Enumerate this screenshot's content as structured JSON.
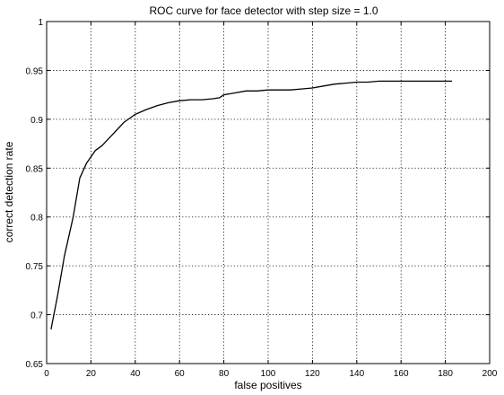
{
  "chart_data": {
    "type": "line",
    "title": "ROC curve for face detector with step size = 1.0",
    "xlabel": "false positives",
    "ylabel": "correct detection rate",
    "xlim": [
      0,
      200
    ],
    "ylim": [
      0.65,
      1
    ],
    "xticks": [
      0,
      20,
      40,
      60,
      80,
      100,
      120,
      140,
      160,
      180,
      200
    ],
    "yticks": [
      0.65,
      0.7,
      0.75,
      0.8,
      0.85,
      0.9,
      0.95,
      1
    ],
    "xtick_labels": [
      "0",
      "20",
      "40",
      "60",
      "80",
      "100",
      "120",
      "140",
      "160",
      "180",
      "200"
    ],
    "ytick_labels": [
      "0.65",
      "0.7",
      "0.75",
      "0.8",
      "0.85",
      "0.9",
      "0.95",
      "1"
    ],
    "grid": true,
    "series": [
      {
        "color": "#000000",
        "x": [
          2,
          5,
          8,
          12,
          15,
          18,
          22,
          25,
          30,
          35,
          40,
          45,
          50,
          55,
          60,
          65,
          70,
          75,
          78,
          80,
          85,
          90,
          95,
          100,
          105,
          110,
          115,
          120,
          125,
          130,
          135,
          140,
          145,
          150,
          160,
          170,
          180,
          183
        ],
        "y": [
          0.685,
          0.72,
          0.76,
          0.8,
          0.84,
          0.855,
          0.868,
          0.873,
          0.885,
          0.897,
          0.905,
          0.91,
          0.914,
          0.917,
          0.919,
          0.92,
          0.92,
          0.921,
          0.922,
          0.925,
          0.927,
          0.929,
          0.929,
          0.93,
          0.93,
          0.93,
          0.931,
          0.932,
          0.934,
          0.936,
          0.937,
          0.938,
          0.938,
          0.939,
          0.939,
          0.939,
          0.939,
          0.939
        ]
      }
    ]
  }
}
